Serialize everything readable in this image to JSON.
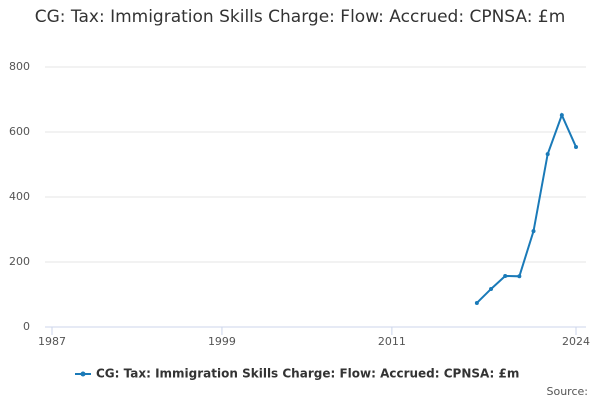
{
  "chart_data": {
    "type": "line",
    "title": "CG: Tax: Immigration Skills Charge: Flow: Accrued: CPNSA: £m",
    "x": [
      2017,
      2018,
      2019,
      2020,
      2021,
      2022,
      2023,
      2024
    ],
    "series": [
      {
        "name": "CG: Tax: Immigration Skills Charge: Flow: Accrued: CPNSA: £m",
        "color": "#1a7ab8",
        "values": [
          74,
          117,
          157,
          156,
          295,
          532,
          652,
          554
        ]
      }
    ],
    "xlim": [
      1987,
      2024
    ],
    "xticks": [
      1987,
      1999,
      2011,
      2024
    ],
    "ylim": [
      0,
      800
    ],
    "yticks": [
      0,
      200,
      400,
      600,
      800
    ],
    "grid": true,
    "source": "Source:"
  }
}
